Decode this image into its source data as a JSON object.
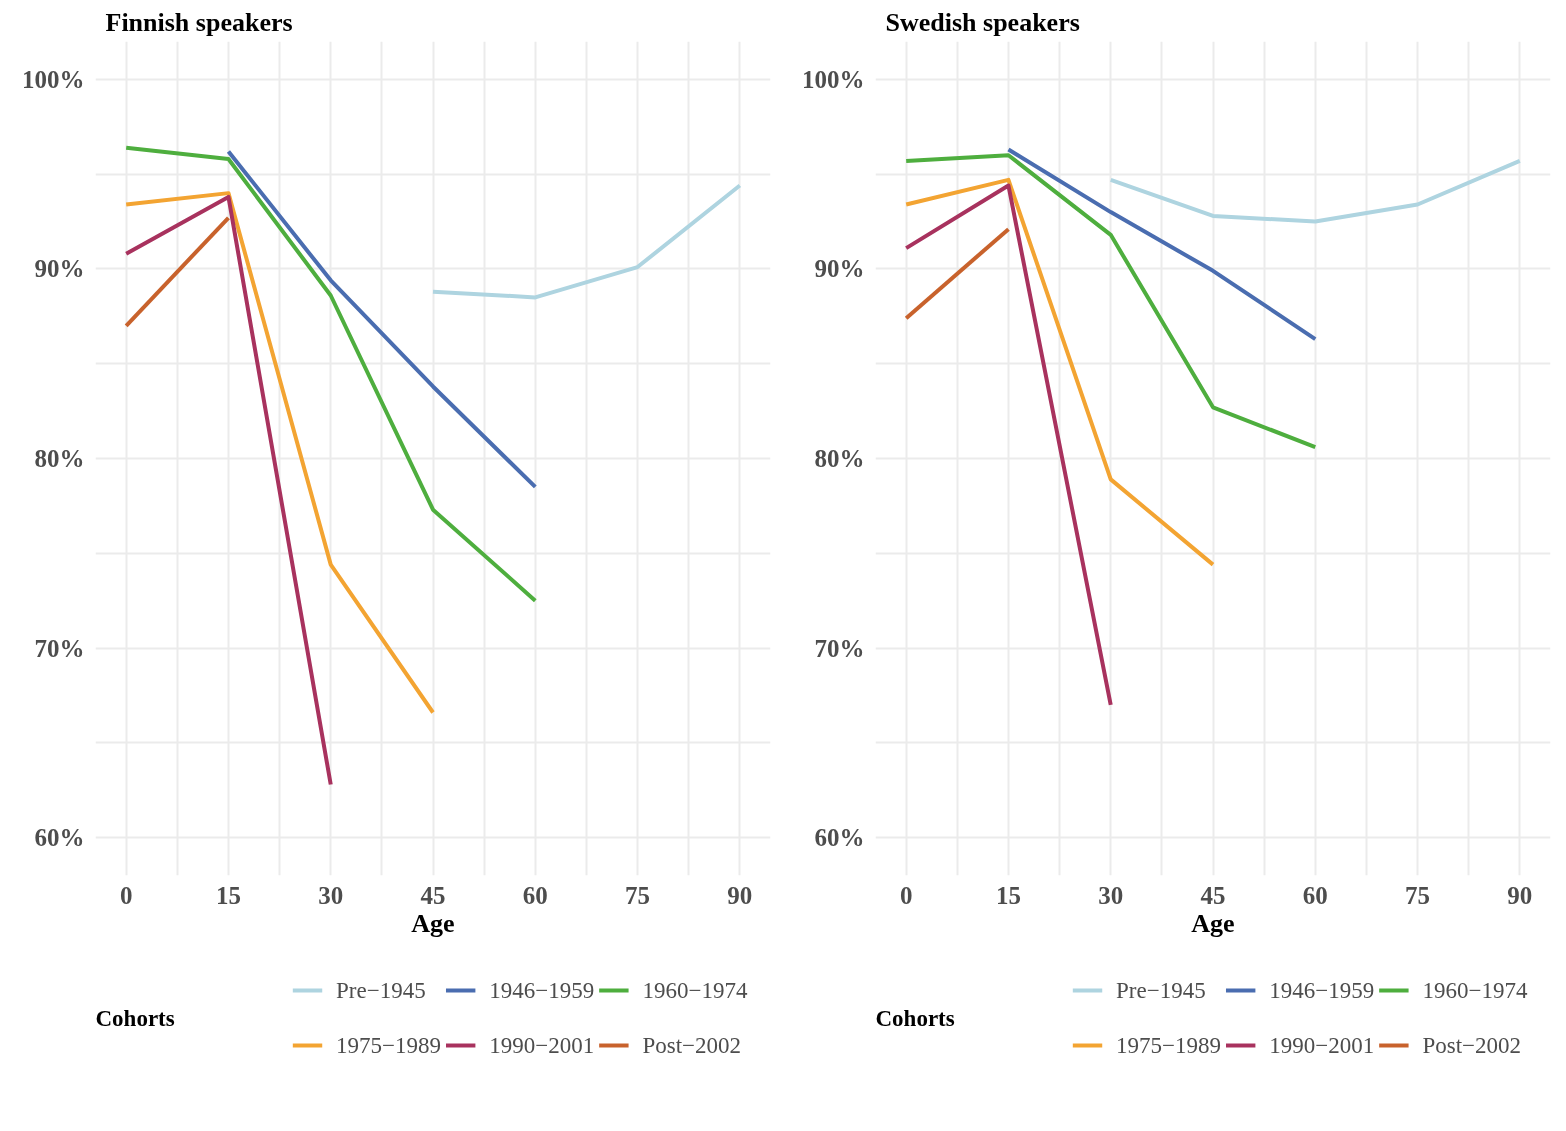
{
  "chart_data": [
    {
      "type": "line",
      "title": "Finnish speakers",
      "xlabel": "Age",
      "legend_title": "Cohorts",
      "legend": "bottom",
      "grid": true,
      "xlim": [
        -4.5,
        94.5
      ],
      "ylim": [
        58,
        102
      ],
      "xticks": [
        0,
        {
          "value": 7.5,
          "label": null
        },
        15,
        {
          "value": 22.5,
          "label": null
        },
        30,
        {
          "value": 37.5,
          "label": null
        },
        45,
        {
          "value": 52.5,
          "label": null
        },
        60,
        {
          "value": 67.5,
          "label": null
        },
        75,
        {
          "value": 82.5,
          "label": null
        },
        90
      ],
      "yticks": [
        {
          "value": 60,
          "label": "60%"
        },
        {
          "value": 65,
          "label": null
        },
        {
          "value": 70,
          "label": "70%"
        },
        {
          "value": 75,
          "label": null
        },
        {
          "value": 80,
          "label": "80%"
        },
        {
          "value": 85,
          "label": null
        },
        {
          "value": 90,
          "label": "90%"
        },
        {
          "value": 95,
          "label": null
        },
        {
          "value": 100,
          "label": "100%"
        }
      ],
      "series": [
        {
          "name": "Pre−1945",
          "color": "#aed4e0",
          "x": [
            45,
            60,
            75,
            90
          ],
          "values": [
            88.8,
            88.5,
            90.1,
            94.4
          ]
        },
        {
          "name": "1946−1959",
          "color": "#4a6db0",
          "x": [
            15,
            30,
            45,
            60
          ],
          "values": [
            96.2,
            89.4,
            83.8,
            78.5
          ]
        },
        {
          "name": "1960−1974",
          "color": "#4eae3e",
          "x": [
            0,
            15,
            30,
            45,
            60
          ],
          "values": [
            96.4,
            95.8,
            88.6,
            77.3,
            72.5
          ]
        },
        {
          "name": "1975−1989",
          "color": "#f3a432",
          "x": [
            0,
            15,
            30,
            45
          ],
          "values": [
            93.4,
            94.0,
            74.4,
            66.6
          ]
        },
        {
          "name": "1990−2001",
          "color": "#a8325e",
          "x": [
            0,
            15,
            30
          ],
          "values": [
            90.8,
            93.8,
            62.8
          ]
        },
        {
          "name": "Post−2002",
          "color": "#c8622c",
          "x": [
            0,
            15
          ],
          "values": [
            87.0,
            92.7
          ]
        }
      ]
    },
    {
      "type": "line",
      "title": "Swedish speakers",
      "xlabel": "Age",
      "legend_title": "Cohorts",
      "legend": "bottom",
      "grid": true,
      "xlim": [
        -4.5,
        94.5
      ],
      "ylim": [
        58,
        102
      ],
      "xticks": [
        0,
        {
          "value": 7.5,
          "label": null
        },
        15,
        {
          "value": 22.5,
          "label": null
        },
        30,
        {
          "value": 37.5,
          "label": null
        },
        45,
        {
          "value": 52.5,
          "label": null
        },
        60,
        {
          "value": 67.5,
          "label": null
        },
        75,
        {
          "value": 82.5,
          "label": null
        },
        90
      ],
      "yticks": [
        {
          "value": 60,
          "label": "60%"
        },
        {
          "value": 65,
          "label": null
        },
        {
          "value": 70,
          "label": "70%"
        },
        {
          "value": 75,
          "label": null
        },
        {
          "value": 80,
          "label": "80%"
        },
        {
          "value": 85,
          "label": null
        },
        {
          "value": 90,
          "label": "90%"
        },
        {
          "value": 95,
          "label": null
        },
        {
          "value": 100,
          "label": "100%"
        }
      ],
      "series": [
        {
          "name": "Pre−1945",
          "color": "#aed4e0",
          "x": [
            30,
            45,
            60,
            75,
            90
          ],
          "values": [
            94.7,
            92.8,
            92.5,
            93.4,
            95.7
          ]
        },
        {
          "name": "1946−1959",
          "color": "#4a6db0",
          "x": [
            15,
            30,
            45,
            60
          ],
          "values": [
            96.3,
            93.0,
            89.9,
            86.3
          ]
        },
        {
          "name": "1960−1974",
          "color": "#4eae3e",
          "x": [
            0,
            15,
            30,
            45,
            60
          ],
          "values": [
            95.7,
            96.0,
            91.8,
            82.7,
            80.6
          ]
        },
        {
          "name": "1975−1989",
          "color": "#f3a432",
          "x": [
            0,
            15,
            30,
            45
          ],
          "values": [
            93.4,
            94.7,
            78.9,
            74.4
          ]
        },
        {
          "name": "1990−2001",
          "color": "#a8325e",
          "x": [
            0,
            15,
            30
          ],
          "values": [
            91.1,
            94.4,
            67.0
          ]
        },
        {
          "name": "Post−2002",
          "color": "#c8622c",
          "x": [
            0,
            15
          ],
          "values": [
            87.4,
            92.1
          ]
        }
      ]
    }
  ]
}
